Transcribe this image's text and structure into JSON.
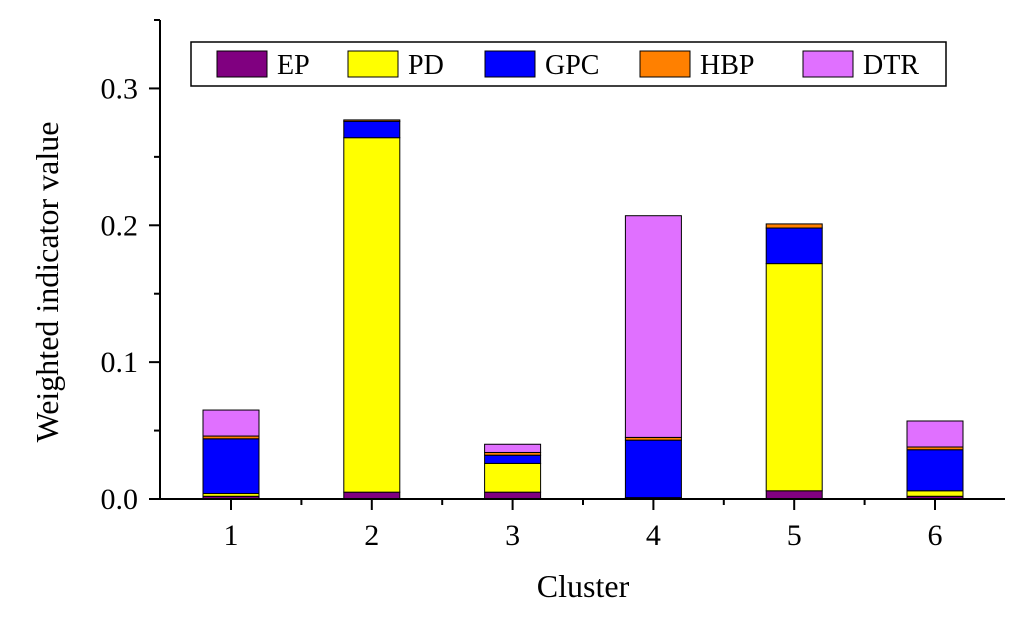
{
  "chart_data": {
    "type": "bar",
    "stacked": true,
    "categories": [
      "1",
      "2",
      "3",
      "4",
      "5",
      "6"
    ],
    "series": [
      {
        "name": "EP",
        "color": "#800080",
        "values": [
          0.002,
          0.005,
          0.005,
          0.001,
          0.006,
          0.002
        ]
      },
      {
        "name": "PD",
        "color": "#ffff00",
        "values": [
          0.002,
          0.259,
          0.021,
          0.0,
          0.166,
          0.004
        ]
      },
      {
        "name": "GPC",
        "color": "#0000ff",
        "values": [
          0.04,
          0.012,
          0.006,
          0.042,
          0.026,
          0.03
        ]
      },
      {
        "name": "HBP",
        "color": "#ff8000",
        "values": [
          0.002,
          0.001,
          0.002,
          0.002,
          0.003,
          0.002
        ]
      },
      {
        "name": "DTR",
        "color": "#e070ff",
        "values": [
          0.019,
          0.0,
          0.006,
          0.162,
          0.0,
          0.019
        ]
      }
    ],
    "xlabel": "Cluster",
    "ylabel": "Weighted indicator value",
    "ylim": [
      0.0,
      0.35
    ],
    "yticks": [
      "0.0",
      "0.1",
      "0.2",
      "0.3"
    ],
    "ytick_values": [
      0.0,
      0.1,
      0.2,
      0.3
    ],
    "legend_position": "top-center",
    "grid": false
  }
}
